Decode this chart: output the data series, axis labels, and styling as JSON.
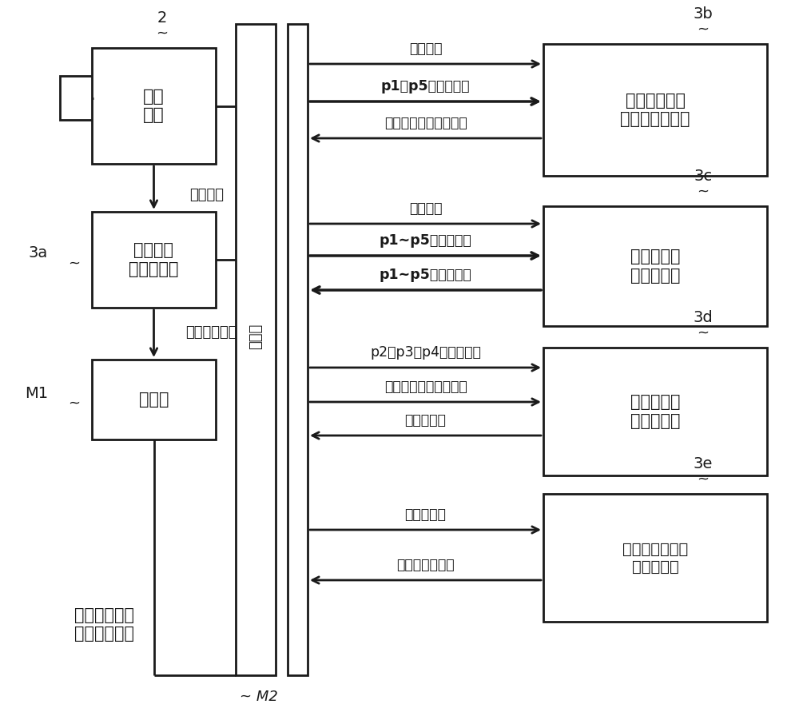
{
  "bg_color": "#ffffff",
  "line_color": "#1a1a1a",
  "box_fill": "#ffffff",
  "labels": {
    "sensor_box": "线传\n感器",
    "img_gen_box": "线传感器\n图像生成部",
    "mem_box_left": "存储器",
    "mem_box_center": "存储器",
    "box_3b": "电车线中心点\n位置计算处理部",
    "box_3c": "边界点位置\n计算处理部",
    "box_3d": "磨损截面积\n计算处理部",
    "box_3e": "残留直径相当值\n计算处理部",
    "label_2": "2",
    "label_3a": "3a",
    "label_3b": "3b",
    "label_3c": "3c",
    "label_3d": "3d",
    "label_3e": "3e",
    "label_M1": "M1",
    "label_M2": "M2",
    "img_signal": "图像信号",
    "sensor_image": "线传感器图像",
    "bottom_label": "电车线测定用\n线传感器图像",
    "tilde": "~",
    "arrow_3b_1": "相机参数",
    "arrow_3b_2": "p1、p5的像素位置",
    "arrow_3b_3": "电车线中心的实际坐标",
    "arrow_3c_1": "相机参数",
    "arrow_3c_2": "p1~p5的像素位置",
    "arrow_3c_3": "p1~p5的实际坐标",
    "arrow_3d_1": "p2、p3、p4的实际坐标",
    "arrow_3d_2": "电车线中心的实际坐标",
    "arrow_3d_3": "磨损截面积",
    "arrow_3e_1": "磨损截面积",
    "arrow_3e_2": "残留直径相当值"
  },
  "figsize": [
    10.0,
    8.86
  ],
  "dpi": 100
}
